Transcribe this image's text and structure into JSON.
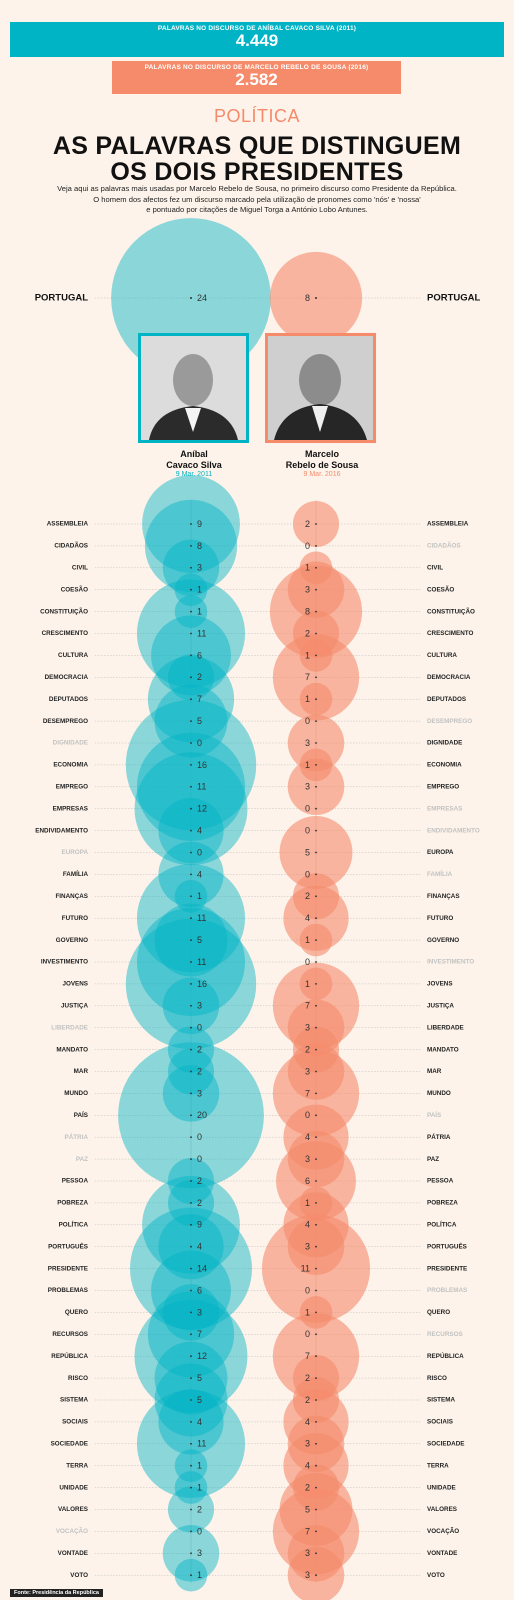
{
  "banner_cavaco": {
    "label": "PALAVRAS NO DISCURSO DE ANÍBAL CAVACO SILVA (2011)",
    "value": "4.449"
  },
  "banner_marcelo": {
    "label": "PALAVRAS NO DISCURSO DE MARCELO REBELO DE SOUSA (2016)",
    "value": "2.582"
  },
  "section": "POLÍTICA",
  "title_line1": "AS PALAVRAS QUE DISTINGUEM",
  "title_line2": "OS DOIS PRESIDENTES",
  "subtitle_line1": "Veja aqui as palavras mais usadas por Marcelo Rebelo de Sousa, no primeiro discurso como Presidente da República.",
  "subtitle_line2": "O homem dos afectos fez um discurso marcado pela utilização de pronomes como 'nós' e 'nossa'",
  "subtitle_line3": "e pontuado por citações de Miguel Torga a António Lobo Antunes.",
  "cavaco": {
    "name_line1": "Aníbal",
    "name_line2": "Cavaco Silva",
    "date": "9 Mar. 2011"
  },
  "marcelo": {
    "name_line1": "Marcelo",
    "name_line2": "Rebelo de Sousa",
    "date": "9 Mar. 2016"
  },
  "source": "Fonte: Presidência da República",
  "colors": {
    "cavaco": "#00b4c6",
    "marcelo": "#f58b6a",
    "background": "#fdf3ea"
  },
  "chart_data": {
    "type": "bubble",
    "series": [
      {
        "name": "Aníbal Cavaco Silva"
      },
      {
        "name": "Marcelo Rebelo de Sousa"
      }
    ],
    "highlight": {
      "word": "PORTUGAL",
      "cavaco": 24,
      "marcelo": 8
    },
    "words": [
      {
        "w": "ASSEMBLEIA",
        "c": 9,
        "m": 2
      },
      {
        "w": "CIDADÃOS",
        "c": 8,
        "m": 0
      },
      {
        "w": "CIVIL",
        "c": 3,
        "m": 1
      },
      {
        "w": "COESÃO",
        "c": 1,
        "m": 3
      },
      {
        "w": "CONSTITUIÇÃO",
        "c": 1,
        "m": 8
      },
      {
        "w": "CRESCIMENTO",
        "c": 11,
        "m": 2
      },
      {
        "w": "CULTURA",
        "c": 6,
        "m": 1
      },
      {
        "w": "DEMOCRACIA",
        "c": 2,
        "m": 7
      },
      {
        "w": "DEPUTADOS",
        "c": 7,
        "m": 1
      },
      {
        "w": "DESEMPREGO",
        "c": 5,
        "m": 0
      },
      {
        "w": "DIGNIDADE",
        "c": 0,
        "m": 3
      },
      {
        "w": "ECONOMIA",
        "c": 16,
        "m": 1
      },
      {
        "w": "EMPREGO",
        "c": 11,
        "m": 3
      },
      {
        "w": "EMPRESAS",
        "c": 12,
        "m": 0
      },
      {
        "w": "ENDIVIDAMENTO",
        "c": 4,
        "m": 0
      },
      {
        "w": "EUROPA",
        "c": 0,
        "m": 5
      },
      {
        "w": "FAMÍLIA",
        "c": 4,
        "m": 0
      },
      {
        "w": "FINANÇAS",
        "c": 1,
        "m": 2
      },
      {
        "w": "FUTURO",
        "c": 11,
        "m": 4
      },
      {
        "w": "GOVERNO",
        "c": 5,
        "m": 1
      },
      {
        "w": "INVESTIMENTO",
        "c": 11,
        "m": 0
      },
      {
        "w": "JOVENS",
        "c": 16,
        "m": 1
      },
      {
        "w": "JUSTIÇA",
        "c": 3,
        "m": 7
      },
      {
        "w": "LIBERDADE",
        "c": 0,
        "m": 3
      },
      {
        "w": "MANDATO",
        "c": 2,
        "m": 2
      },
      {
        "w": "MAR",
        "c": 2,
        "m": 3
      },
      {
        "w": "MUNDO",
        "c": 3,
        "m": 7
      },
      {
        "w": "PAÍS",
        "c": 20,
        "m": 0
      },
      {
        "w": "PÁTRIA",
        "c": 0,
        "m": 4
      },
      {
        "w": "PAZ",
        "c": 0,
        "m": 3
      },
      {
        "w": "PESSOA",
        "c": 2,
        "m": 6
      },
      {
        "w": "POBREZA",
        "c": 2,
        "m": 1
      },
      {
        "w": "POLÍTICA",
        "c": 9,
        "m": 4
      },
      {
        "w": "PORTUGUÊS",
        "c": 4,
        "m": 3
      },
      {
        "w": "PRESIDENTE",
        "c": 14,
        "m": 11
      },
      {
        "w": "PROBLEMAS",
        "c": 6,
        "m": 0
      },
      {
        "w": "QUERO",
        "c": 3,
        "m": 1
      },
      {
        "w": "RECURSOS",
        "c": 7,
        "m": 0
      },
      {
        "w": "REPÚBLICA",
        "c": 12,
        "m": 7
      },
      {
        "w": "RISCO",
        "c": 5,
        "m": 2
      },
      {
        "w": "SISTEMA",
        "c": 5,
        "m": 2
      },
      {
        "w": "SOCIAIS",
        "c": 4,
        "m": 4
      },
      {
        "w": "SOCIEDADE",
        "c": 11,
        "m": 3
      },
      {
        "w": "TERRA",
        "c": 1,
        "m": 4
      },
      {
        "w": "UNIDADE",
        "c": 1,
        "m": 2
      },
      {
        "w": "VALORES",
        "c": 2,
        "m": 5
      },
      {
        "w": "VOCAÇÃO",
        "c": 0,
        "m": 7
      },
      {
        "w": "VONTADE",
        "c": 3,
        "m": 3
      },
      {
        "w": "VOTO",
        "c": 1,
        "m": 3
      }
    ]
  }
}
